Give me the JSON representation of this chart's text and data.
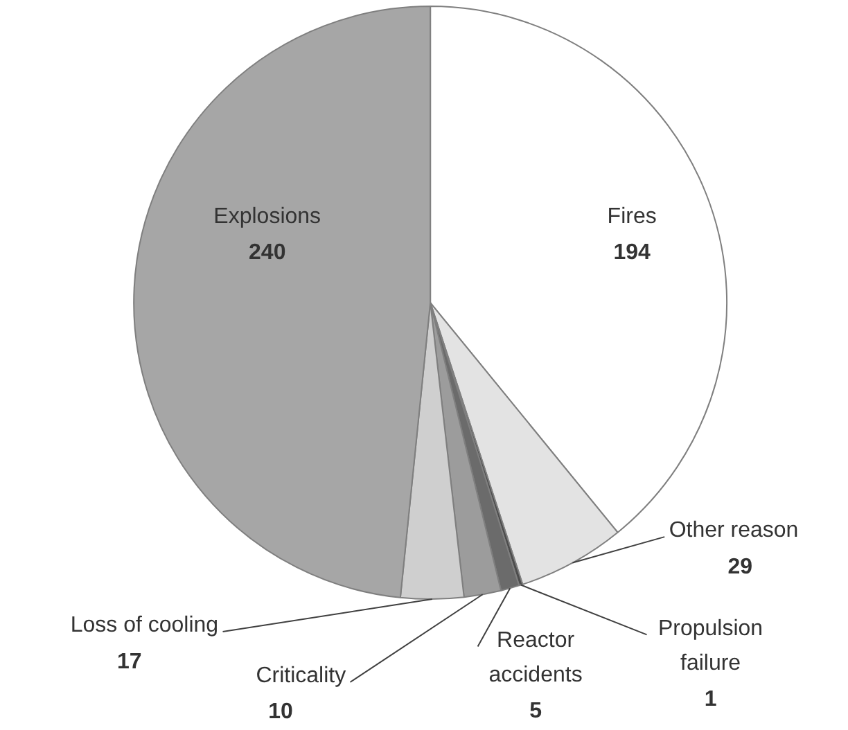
{
  "chart_data": {
    "type": "pie",
    "categories": [
      "Fires",
      "Other reason",
      "Propulsion failure",
      "Reactor accidents",
      "Criticality",
      "Loss of cooling",
      "Explosions"
    ],
    "values": [
      194,
      29,
      1,
      5,
      10,
      17,
      240
    ],
    "colors": [
      "#ffffff",
      "#e3e3e3",
      "#4d4d4d",
      "#6b6b6b",
      "#9c9c9c",
      "#cfcfcf",
      "#a6a6a6"
    ],
    "data_labels": true
  }
}
